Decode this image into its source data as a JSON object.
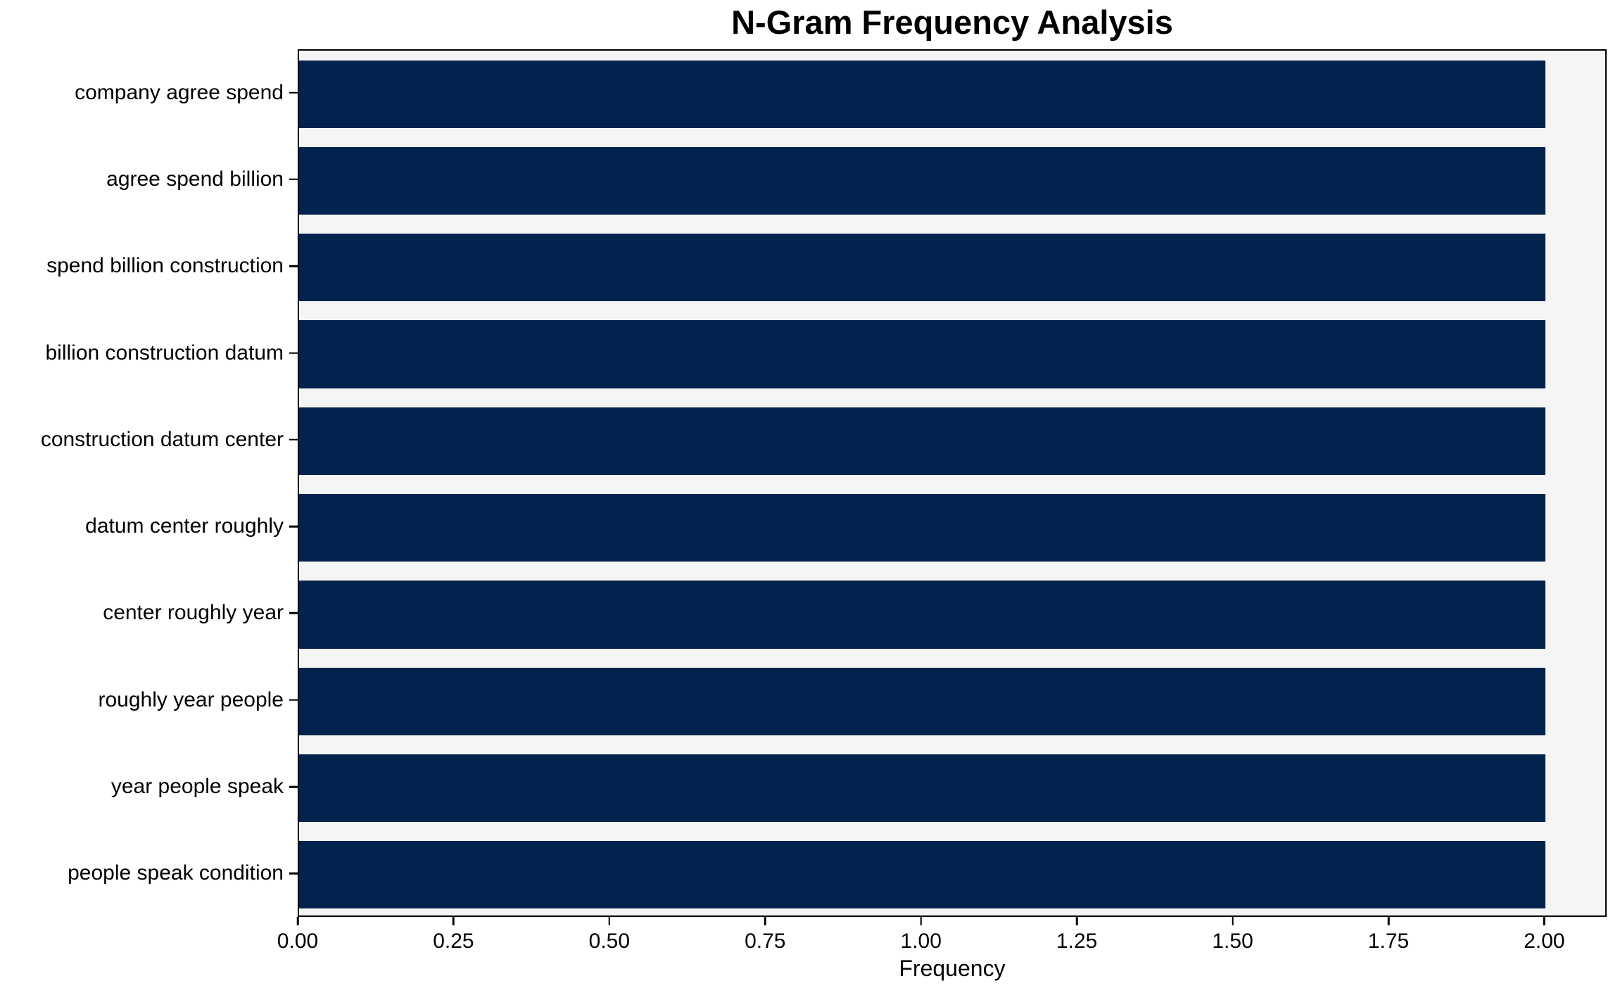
{
  "chart_data": {
    "type": "bar",
    "orientation": "horizontal",
    "title": "N-Gram Frequency Analysis",
    "xlabel": "Frequency",
    "ylabel": "",
    "categories": [
      "company agree spend",
      "agree spend billion",
      "spend billion construction",
      "billion construction datum",
      "construction datum center",
      "datum center roughly",
      "center roughly year",
      "roughly year people",
      "year people speak",
      "people speak condition"
    ],
    "values": [
      2,
      2,
      2,
      2,
      2,
      2,
      2,
      2,
      2,
      2
    ],
    "xlim": [
      0,
      2.1
    ],
    "xticks": [
      {
        "value": 0.0,
        "label": "0.00"
      },
      {
        "value": 0.25,
        "label": "0.25"
      },
      {
        "value": 0.5,
        "label": "0.50"
      },
      {
        "value": 0.75,
        "label": "0.75"
      },
      {
        "value": 1.0,
        "label": "1.00"
      },
      {
        "value": 1.25,
        "label": "1.25"
      },
      {
        "value": 1.5,
        "label": "1.50"
      },
      {
        "value": 1.75,
        "label": "1.75"
      },
      {
        "value": 2.0,
        "label": "2.00"
      }
    ],
    "grid": false,
    "legend": null,
    "colors": {
      "bar": "#02234d",
      "plot_background": "#f5f5f5",
      "figure_background": "#ffffff",
      "axis": "#000000",
      "text": "#000000"
    }
  }
}
